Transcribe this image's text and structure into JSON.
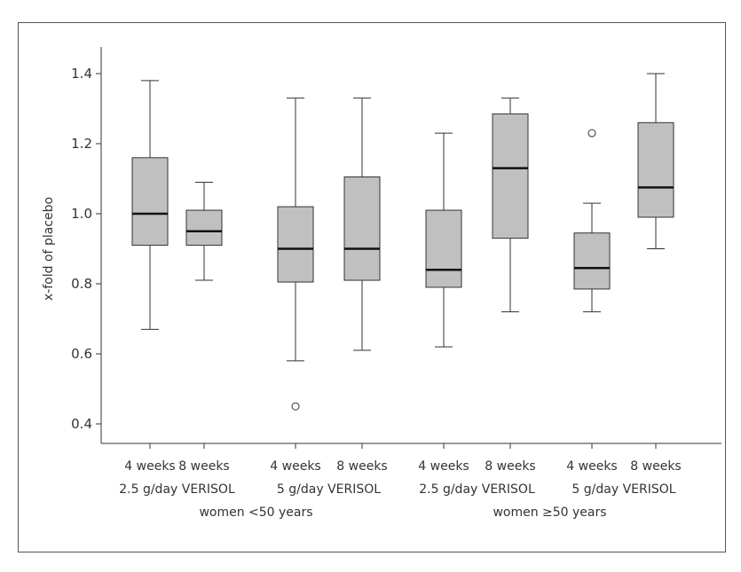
{
  "chart_data": {
    "type": "boxplot",
    "ylabel": "x-fold of placebo",
    "ylim": [
      0.35,
      1.45
    ],
    "yticks": [
      "0.4",
      "0.6",
      "0.8",
      "1.0",
      "1.2",
      "1.4"
    ],
    "yticks_values": [
      0.4,
      0.6,
      0.8,
      1.0,
      1.2,
      1.4
    ],
    "box_fill": "#c0c0c0",
    "line_color": "#333333",
    "boxes": [
      {
        "week_label": "4 weeks",
        "min": 0.67,
        "q1": 0.91,
        "median": 1.0,
        "q3": 1.16,
        "max": 1.38,
        "outliers": []
      },
      {
        "week_label": "8 weeks",
        "min": 0.81,
        "q1": 0.91,
        "median": 0.95,
        "q3": 1.01,
        "max": 1.09,
        "outliers": []
      },
      {
        "week_label": "4 weeks",
        "min": 0.58,
        "q1": 0.805,
        "median": 0.9,
        "q3": 1.02,
        "max": 1.33,
        "outliers": [
          0.45
        ]
      },
      {
        "week_label": "8 weeks",
        "min": 0.61,
        "q1": 0.81,
        "median": 0.9,
        "q3": 1.105,
        "max": 1.33,
        "outliers": []
      },
      {
        "week_label": "4 weeks",
        "min": 0.62,
        "q1": 0.79,
        "median": 0.84,
        "q3": 1.01,
        "max": 1.23,
        "outliers": []
      },
      {
        "week_label": "8 weeks",
        "min": 0.72,
        "q1": 0.93,
        "median": 1.13,
        "q3": 1.285,
        "max": 1.33,
        "outliers": []
      },
      {
        "week_label": "4 weeks",
        "min": 0.72,
        "q1": 0.785,
        "median": 0.845,
        "q3": 0.945,
        "max": 1.03,
        "outliers": [
          1.23
        ]
      },
      {
        "week_label": "8 weeks",
        "min": 0.9,
        "q1": 0.99,
        "median": 1.075,
        "q3": 1.26,
        "max": 1.4,
        "outliers": []
      }
    ],
    "dose_groups": [
      "2.5 g/day VERISOL",
      "5 g/day VERISOL",
      "2.5 g/day VERISOL",
      "5 g/day VERISOL"
    ],
    "age_groups": [
      "women <50 years",
      "women ≥50 years"
    ]
  }
}
